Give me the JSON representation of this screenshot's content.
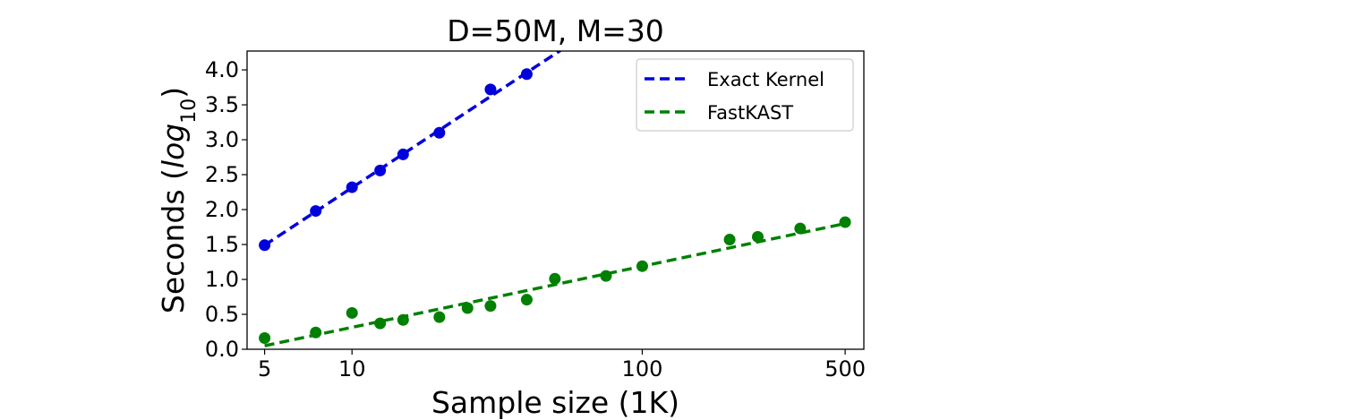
{
  "chart_data": {
    "type": "scatter",
    "title": "D=50M, M=30",
    "xlabel": "Sample size (1K)",
    "ylabel_main": "Seconds (",
    "ylabel_italic": "log",
    "ylabel_sub": "10",
    "ylabel_close": ")",
    "xscale": "log",
    "xlim": [
      4.35,
      580
    ],
    "ylim": [
      0.0,
      4.27
    ],
    "xticks": [
      5,
      10,
      100,
      500
    ],
    "xtick_labels": [
      "5",
      "10",
      "100",
      "500"
    ],
    "yticks": [
      0.0,
      0.5,
      1.0,
      1.5,
      2.0,
      2.5,
      3.0,
      3.5,
      4.0
    ],
    "ytick_labels": [
      "0.0",
      "0.5",
      "1.0",
      "1.5",
      "2.0",
      "2.5",
      "3.0",
      "3.5",
      "4.0"
    ],
    "grid": false,
    "legend_position": "top-right",
    "series": [
      {
        "name": "Exact Kernel",
        "color": "#0000dd",
        "points": [
          {
            "x": 5,
            "y": 1.49
          },
          {
            "x": 7.5,
            "y": 1.98
          },
          {
            "x": 10,
            "y": 2.32
          },
          {
            "x": 12.5,
            "y": 2.56
          },
          {
            "x": 15,
            "y": 2.79
          },
          {
            "x": 20,
            "y": 3.1
          },
          {
            "x": 30,
            "y": 3.72
          },
          {
            "x": 40,
            "y": 3.94
          }
        ],
        "fit": {
          "x": [
            5,
            55
          ],
          "y": [
            1.49,
            4.34
          ]
        }
      },
      {
        "name": "FastKAST",
        "color": "#008000",
        "points": [
          {
            "x": 5,
            "y": 0.16
          },
          {
            "x": 7.5,
            "y": 0.24
          },
          {
            "x": 10,
            "y": 0.52
          },
          {
            "x": 12.5,
            "y": 0.37
          },
          {
            "x": 15,
            "y": 0.42
          },
          {
            "x": 20,
            "y": 0.46
          },
          {
            "x": 25,
            "y": 0.59
          },
          {
            "x": 30,
            "y": 0.62
          },
          {
            "x": 40,
            "y": 0.71
          },
          {
            "x": 50,
            "y": 1.01
          },
          {
            "x": 75,
            "y": 1.05
          },
          {
            "x": 100,
            "y": 1.19
          },
          {
            "x": 200,
            "y": 1.57
          },
          {
            "x": 250,
            "y": 1.61
          },
          {
            "x": 350,
            "y": 1.73
          },
          {
            "x": 500,
            "y": 1.82
          }
        ],
        "fit": {
          "x": [
            5,
            500
          ],
          "y": [
            0.05,
            1.8
          ]
        }
      }
    ]
  }
}
